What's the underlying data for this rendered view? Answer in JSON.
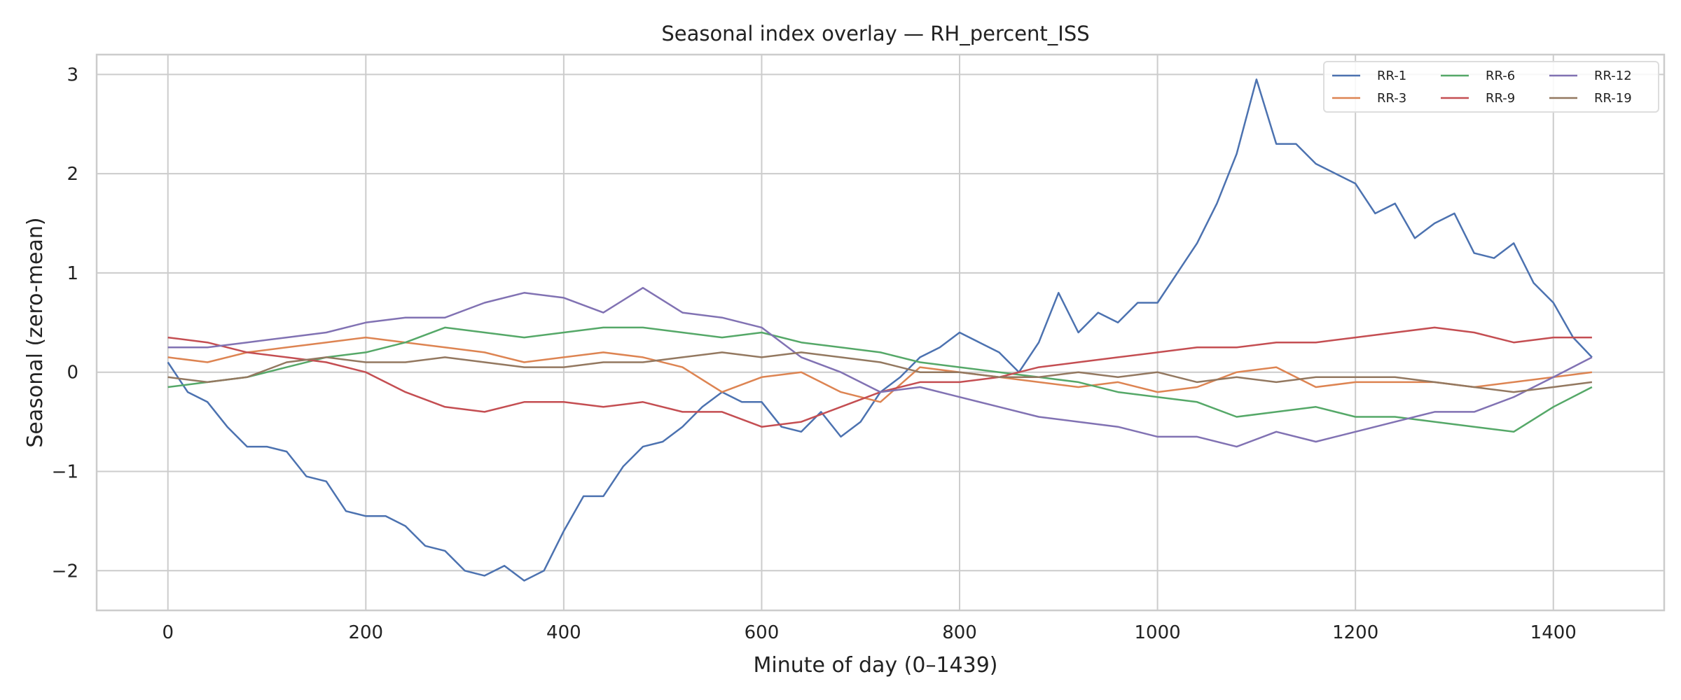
{
  "chart_data": {
    "type": "line",
    "title": "Seasonal index overlay — RH_percent_ISS",
    "xlabel": "Minute of day (0–1439)",
    "ylabel": "Seasonal (zero-mean)",
    "xlim": [
      -72,
      1512
    ],
    "ylim": [
      -2.4,
      3.2
    ],
    "xticks": [
      0,
      200,
      400,
      600,
      800,
      1000,
      1200,
      1400
    ],
    "yticks": [
      -2,
      -1,
      0,
      1,
      2,
      3
    ],
    "xtick_labels": [
      "0",
      "200",
      "400",
      "600",
      "800",
      "1000",
      "1200",
      "1400"
    ],
    "ytick_labels": [
      "−2",
      "−1",
      "0",
      "1",
      "2",
      "3"
    ],
    "grid": true,
    "legend_position": "top-right",
    "legend_columns": 3,
    "series": [
      {
        "name": "RR-1",
        "color": "#4c72b0",
        "x": [
          0,
          20,
          40,
          60,
          80,
          100,
          120,
          140,
          160,
          180,
          200,
          220,
          240,
          260,
          280,
          300,
          320,
          340,
          360,
          380,
          400,
          420,
          440,
          460,
          480,
          500,
          520,
          540,
          560,
          580,
          600,
          620,
          640,
          660,
          680,
          700,
          720,
          740,
          760,
          780,
          800,
          820,
          840,
          860,
          880,
          900,
          920,
          940,
          960,
          980,
          1000,
          1020,
          1040,
          1060,
          1080,
          1100,
          1120,
          1140,
          1160,
          1180,
          1200,
          1220,
          1240,
          1260,
          1280,
          1300,
          1320,
          1340,
          1360,
          1380,
          1400,
          1420,
          1439
        ],
        "values": [
          0.1,
          -0.2,
          -0.3,
          -0.55,
          -0.75,
          -0.75,
          -0.8,
          -1.05,
          -1.1,
          -1.4,
          -1.45,
          -1.45,
          -1.55,
          -1.75,
          -1.8,
          -2.0,
          -2.05,
          -1.95,
          -2.1,
          -2.0,
          -1.6,
          -1.25,
          -1.25,
          -0.95,
          -0.75,
          -0.7,
          -0.55,
          -0.35,
          -0.2,
          -0.3,
          -0.3,
          -0.55,
          -0.6,
          -0.4,
          -0.65,
          -0.5,
          -0.2,
          -0.05,
          0.15,
          0.25,
          0.4,
          0.3,
          0.2,
          0.0,
          0.3,
          0.8,
          0.4,
          0.6,
          0.5,
          0.7,
          0.7,
          1.0,
          1.3,
          1.7,
          2.2,
          2.95,
          2.3,
          2.3,
          2.1,
          2.0,
          1.9,
          1.6,
          1.7,
          1.35,
          1.5,
          1.6,
          1.2,
          1.15,
          1.3,
          0.9,
          0.7,
          0.35,
          0.15
        ]
      },
      {
        "name": "RR-3",
        "color": "#dd8452",
        "x": [
          0,
          40,
          80,
          120,
          160,
          200,
          240,
          280,
          320,
          360,
          400,
          440,
          480,
          520,
          560,
          600,
          640,
          680,
          720,
          760,
          800,
          840,
          880,
          920,
          960,
          1000,
          1040,
          1080,
          1120,
          1160,
          1200,
          1240,
          1280,
          1320,
          1360,
          1400,
          1439
        ],
        "values": [
          0.15,
          0.1,
          0.2,
          0.25,
          0.3,
          0.35,
          0.3,
          0.25,
          0.2,
          0.1,
          0.15,
          0.2,
          0.15,
          0.05,
          -0.2,
          -0.05,
          0.0,
          -0.2,
          -0.3,
          0.05,
          0.0,
          -0.05,
          -0.1,
          -0.15,
          -0.1,
          -0.2,
          -0.15,
          0.0,
          0.05,
          -0.15,
          -0.1,
          -0.1,
          -0.1,
          -0.15,
          -0.1,
          -0.05,
          0.0
        ]
      },
      {
        "name": "RR-6",
        "color": "#55a868",
        "x": [
          0,
          40,
          80,
          120,
          160,
          200,
          240,
          280,
          320,
          360,
          400,
          440,
          480,
          520,
          560,
          600,
          640,
          680,
          720,
          760,
          800,
          840,
          880,
          920,
          960,
          1000,
          1040,
          1080,
          1120,
          1160,
          1200,
          1240,
          1280,
          1320,
          1360,
          1400,
          1439
        ],
        "values": [
          -0.15,
          -0.1,
          -0.05,
          0.05,
          0.15,
          0.2,
          0.3,
          0.45,
          0.4,
          0.35,
          0.4,
          0.45,
          0.45,
          0.4,
          0.35,
          0.4,
          0.3,
          0.25,
          0.2,
          0.1,
          0.05,
          0.0,
          -0.05,
          -0.1,
          -0.2,
          -0.25,
          -0.3,
          -0.45,
          -0.4,
          -0.35,
          -0.45,
          -0.45,
          -0.5,
          -0.55,
          -0.6,
          -0.35,
          -0.15
        ]
      },
      {
        "name": "RR-9",
        "color": "#c44e52",
        "x": [
          0,
          40,
          80,
          120,
          160,
          200,
          240,
          280,
          320,
          360,
          400,
          440,
          480,
          520,
          560,
          600,
          640,
          680,
          720,
          760,
          800,
          840,
          880,
          920,
          960,
          1000,
          1040,
          1080,
          1120,
          1160,
          1200,
          1240,
          1280,
          1320,
          1360,
          1400,
          1439
        ],
        "values": [
          0.35,
          0.3,
          0.2,
          0.15,
          0.1,
          0.0,
          -0.2,
          -0.35,
          -0.4,
          -0.3,
          -0.3,
          -0.35,
          -0.3,
          -0.4,
          -0.4,
          -0.55,
          -0.5,
          -0.35,
          -0.2,
          -0.1,
          -0.1,
          -0.05,
          0.05,
          0.1,
          0.15,
          0.2,
          0.25,
          0.25,
          0.3,
          0.3,
          0.35,
          0.4,
          0.45,
          0.4,
          0.3,
          0.35,
          0.35
        ]
      },
      {
        "name": "RR-12",
        "color": "#8172b3",
        "x": [
          0,
          40,
          80,
          120,
          160,
          200,
          240,
          280,
          320,
          360,
          400,
          440,
          480,
          520,
          560,
          600,
          640,
          680,
          720,
          760,
          800,
          840,
          880,
          920,
          960,
          1000,
          1040,
          1080,
          1120,
          1160,
          1200,
          1240,
          1280,
          1320,
          1360,
          1400,
          1439
        ],
        "values": [
          0.25,
          0.25,
          0.3,
          0.35,
          0.4,
          0.5,
          0.55,
          0.55,
          0.7,
          0.8,
          0.75,
          0.6,
          0.85,
          0.6,
          0.55,
          0.45,
          0.15,
          0.0,
          -0.2,
          -0.15,
          -0.25,
          -0.35,
          -0.45,
          -0.5,
          -0.55,
          -0.65,
          -0.65,
          -0.75,
          -0.6,
          -0.7,
          -0.6,
          -0.5,
          -0.4,
          -0.4,
          -0.25,
          -0.05,
          0.15
        ]
      },
      {
        "name": "RR-19",
        "color": "#937860",
        "x": [
          0,
          40,
          80,
          120,
          160,
          200,
          240,
          280,
          320,
          360,
          400,
          440,
          480,
          520,
          560,
          600,
          640,
          680,
          720,
          760,
          800,
          840,
          880,
          920,
          960,
          1000,
          1040,
          1080,
          1120,
          1160,
          1200,
          1240,
          1280,
          1320,
          1360,
          1400,
          1439
        ],
        "values": [
          -0.05,
          -0.1,
          -0.05,
          0.1,
          0.15,
          0.1,
          0.1,
          0.15,
          0.1,
          0.05,
          0.05,
          0.1,
          0.1,
          0.15,
          0.2,
          0.15,
          0.2,
          0.15,
          0.1,
          0.0,
          0.0,
          -0.05,
          -0.05,
          0.0,
          -0.05,
          0.0,
          -0.1,
          -0.05,
          -0.1,
          -0.05,
          -0.05,
          -0.05,
          -0.1,
          -0.15,
          -0.2,
          -0.15,
          -0.1
        ]
      }
    ]
  }
}
